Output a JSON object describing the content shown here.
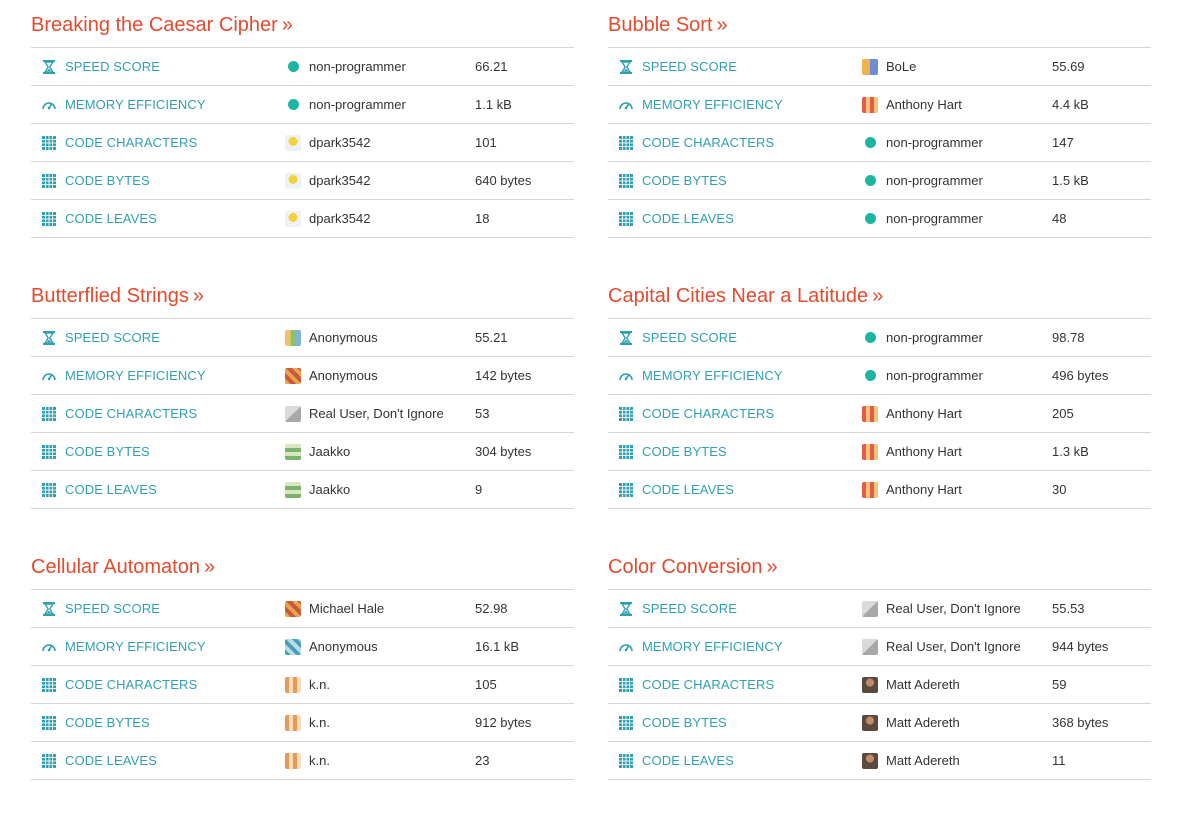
{
  "sections": [
    {
      "title": "Breaking the Caesar Cipher",
      "rows": [
        {
          "category": "SPEED SCORE",
          "icon": "hourglass-icon",
          "user": "non-programmer",
          "avatar": "dot",
          "value": "66.21"
        },
        {
          "category": "MEMORY EFFICIENCY",
          "icon": "gauge-icon",
          "user": "non-programmer",
          "avatar": "dot",
          "value": "1.1 kB"
        },
        {
          "category": "CODE CHARACTERS",
          "icon": "grid-icon",
          "user": "dpark3542",
          "avatar": "pix-i",
          "value": "101"
        },
        {
          "category": "CODE BYTES",
          "icon": "grid-icon",
          "user": "dpark3542",
          "avatar": "pix-i",
          "value": "640 bytes"
        },
        {
          "category": "CODE LEAVES",
          "icon": "grid-icon",
          "user": "dpark3542",
          "avatar": "pix-i",
          "value": "18"
        }
      ]
    },
    {
      "title": "Bubble Sort",
      "rows": [
        {
          "category": "SPEED SCORE",
          "icon": "hourglass-icon",
          "user": "BoLe",
          "avatar": "pix-j",
          "value": "55.69"
        },
        {
          "category": "MEMORY EFFICIENCY",
          "icon": "gauge-icon",
          "user": "Anthony Hart",
          "avatar": "pix-c",
          "value": "4.4 kB"
        },
        {
          "category": "CODE CHARACTERS",
          "icon": "grid-icon",
          "user": "non-programmer",
          "avatar": "dot",
          "value": "147"
        },
        {
          "category": "CODE BYTES",
          "icon": "grid-icon",
          "user": "non-programmer",
          "avatar": "dot",
          "value": "1.5 kB"
        },
        {
          "category": "CODE LEAVES",
          "icon": "grid-icon",
          "user": "non-programmer",
          "avatar": "dot",
          "value": "48"
        }
      ]
    },
    {
      "title": "Butterflied Strings",
      "rows": [
        {
          "category": "SPEED SCORE",
          "icon": "hourglass-icon",
          "user": "Anonymous",
          "avatar": "pix-a",
          "value": "55.21"
        },
        {
          "category": "MEMORY EFFICIENCY",
          "icon": "gauge-icon",
          "user": "Anonymous",
          "avatar": "pix-b",
          "value": "142 bytes"
        },
        {
          "category": "CODE CHARACTERS",
          "icon": "grid-icon",
          "user": "Real User, Don't Ignore",
          "avatar": "pix-g",
          "value": "53"
        },
        {
          "category": "CODE BYTES",
          "icon": "grid-icon",
          "user": "Jaakko",
          "avatar": "pix-d",
          "value": "304 bytes"
        },
        {
          "category": "CODE LEAVES",
          "icon": "grid-icon",
          "user": "Jaakko",
          "avatar": "pix-d",
          "value": "9"
        }
      ]
    },
    {
      "title": "Capital Cities Near a Latitude",
      "rows": [
        {
          "category": "SPEED SCORE",
          "icon": "hourglass-icon",
          "user": "non-programmer",
          "avatar": "dot",
          "value": "98.78"
        },
        {
          "category": "MEMORY EFFICIENCY",
          "icon": "gauge-icon",
          "user": "non-programmer",
          "avatar": "dot",
          "value": "496 bytes"
        },
        {
          "category": "CODE CHARACTERS",
          "icon": "grid-icon",
          "user": "Anthony Hart",
          "avatar": "pix-c",
          "value": "205"
        },
        {
          "category": "CODE BYTES",
          "icon": "grid-icon",
          "user": "Anthony Hart",
          "avatar": "pix-c",
          "value": "1.3 kB"
        },
        {
          "category": "CODE LEAVES",
          "icon": "grid-icon",
          "user": "Anthony Hart",
          "avatar": "pix-c",
          "value": "30"
        }
      ]
    },
    {
      "title": "Cellular Automaton",
      "rows": [
        {
          "category": "SPEED SCORE",
          "icon": "hourglass-icon",
          "user": "Michael Hale",
          "avatar": "pix-b",
          "value": "52.98"
        },
        {
          "category": "MEMORY EFFICIENCY",
          "icon": "gauge-icon",
          "user": "Anonymous",
          "avatar": "pix-e",
          "value": "16.1 kB"
        },
        {
          "category": "CODE CHARACTERS",
          "icon": "grid-icon",
          "user": "k.n.",
          "avatar": "pix-f",
          "value": "105"
        },
        {
          "category": "CODE BYTES",
          "icon": "grid-icon",
          "user": "k.n.",
          "avatar": "pix-f",
          "value": "912 bytes"
        },
        {
          "category": "CODE LEAVES",
          "icon": "grid-icon",
          "user": "k.n.",
          "avatar": "pix-f",
          "value": "23"
        }
      ]
    },
    {
      "title": "Color Conversion",
      "rows": [
        {
          "category": "SPEED SCORE",
          "icon": "hourglass-icon",
          "user": "Real User, Don't Ignore",
          "avatar": "pix-g",
          "value": "55.53"
        },
        {
          "category": "MEMORY EFFICIENCY",
          "icon": "gauge-icon",
          "user": "Real User, Don't Ignore",
          "avatar": "pix-g",
          "value": "944 bytes"
        },
        {
          "category": "CODE CHARACTERS",
          "icon": "grid-icon",
          "user": "Matt Adereth",
          "avatar": "pix-h",
          "value": "59"
        },
        {
          "category": "CODE BYTES",
          "icon": "grid-icon",
          "user": "Matt Adereth",
          "avatar": "pix-h",
          "value": "368 bytes"
        },
        {
          "category": "CODE LEAVES",
          "icon": "grid-icon",
          "user": "Matt Adereth",
          "avatar": "pix-h",
          "value": "11"
        }
      ]
    }
  ],
  "title_arrow": "»",
  "colors": {
    "title": "#e7492c",
    "category": "#2fa0b3",
    "divider": "#d6d6d6",
    "dot": "#1bb5a3"
  }
}
